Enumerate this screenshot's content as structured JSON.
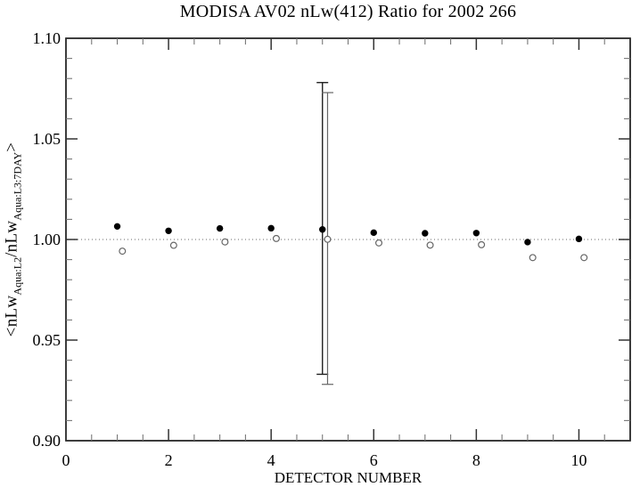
{
  "page": {
    "background": "#ffffff"
  },
  "chart_data": {
    "type": "scatter",
    "title": "MODISA AV02 nLw(412) Ratio for 2002 266",
    "xlabel": "DETECTOR NUMBER",
    "ylabel_plain": "<nLw_Aqua:L2/nLw_Aqua:L3:7DAY>",
    "ylabel_parts": [
      {
        "text": "<nLw",
        "sub": false
      },
      {
        "text": "Aqua:L2",
        "sub": true
      },
      {
        "text": "/nLw",
        "sub": false
      },
      {
        "text": "Aqua:L3:7DAY",
        "sub": true
      },
      {
        "text": ">",
        "sub": false
      }
    ],
    "xlim": [
      0,
      11
    ],
    "ylim": [
      0.9,
      1.1
    ],
    "x_major_ticks": [
      0,
      2,
      4,
      6,
      8,
      10
    ],
    "x_tick_labels": [
      "0",
      "2",
      "4",
      "6",
      "8",
      "10"
    ],
    "x_minor_step": 0.5,
    "y_major_ticks": [
      0.9,
      0.95,
      1.0,
      1.05,
      1.1
    ],
    "y_tick_labels": [
      "0.90",
      "0.95",
      "1.00",
      "1.05",
      "1.10"
    ],
    "y_minor_step": 0.01,
    "grid": false,
    "legend": "none",
    "reference_line": {
      "y": 1.0,
      "style": "dotted"
    },
    "colors": {
      "frame": "#1a1a1a",
      "major_tick": "#333333",
      "minor_tick": "#777777",
      "reference_line": "#888888",
      "filled_marker": "#000000",
      "open_marker_stroke": "#666666",
      "filled_errorbar": "#222222",
      "open_errorbar": "#666666"
    },
    "series": [
      {
        "name": "filled-circles",
        "marker": "filled-circle",
        "x": [
          1,
          2,
          3,
          4,
          5,
          6,
          7,
          8,
          9,
          10
        ],
        "y": [
          1.0065,
          1.0043,
          1.0055,
          1.0056,
          1.005,
          1.0034,
          1.0031,
          1.0032,
          0.9987,
          1.0003
        ],
        "error_bars": [
          {
            "x": 5,
            "y_low": 0.933,
            "y_high": 1.078
          }
        ]
      },
      {
        "name": "open-circles",
        "marker": "open-circle",
        "x": [
          1.1,
          2.1,
          3.1,
          4.1,
          5.1,
          6.1,
          7.1,
          8.1,
          9.1,
          10.1
        ],
        "y": [
          0.9942,
          0.9971,
          0.9988,
          1.0005,
          1.0001,
          0.9983,
          0.9972,
          0.9974,
          0.991,
          0.991
        ],
        "error_bars": [
          {
            "x": 5.1,
            "y_low": 0.928,
            "y_high": 1.073
          }
        ]
      }
    ]
  }
}
